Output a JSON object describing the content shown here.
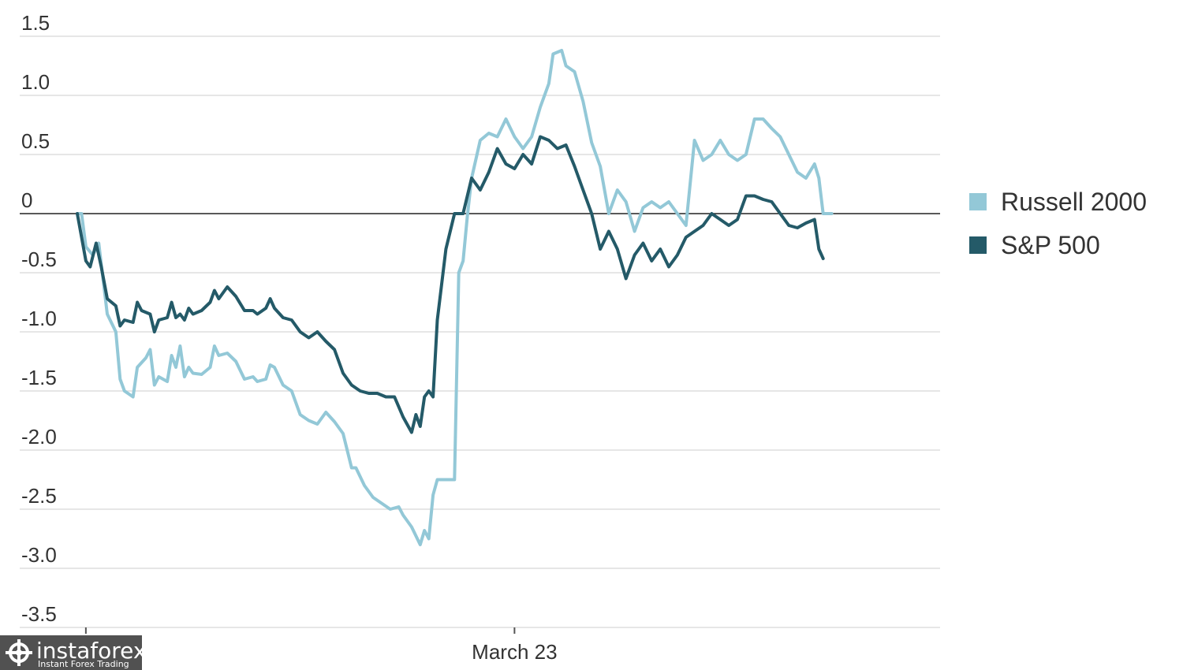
{
  "chart_data": {
    "type": "line",
    "yticks": [
      "1.5",
      "1.0",
      "0.5",
      "0",
      "-0.5",
      "-1.0",
      "-1.5",
      "-2.0",
      "-2.5",
      "-3.0",
      "-3.5"
    ],
    "ylim": [
      -3.5,
      1.5
    ],
    "xlim": [
      0,
      100
    ],
    "x_ticks": [
      {
        "label": "",
        "x": 1
      },
      {
        "label": "March 23",
        "x": 51
      }
    ],
    "grid": true,
    "legend_position": "right",
    "series": [
      {
        "name": "Russell 2000",
        "color": "#93c8d7",
        "points": [
          [
            0,
            0
          ],
          [
            0.5,
            0
          ],
          [
            1,
            -0.28
          ],
          [
            1.8,
            -0.35
          ],
          [
            2.5,
            -0.25
          ],
          [
            3.5,
            -0.85
          ],
          [
            4.5,
            -1.0
          ],
          [
            5,
            -1.4
          ],
          [
            5.5,
            -1.5
          ],
          [
            6.5,
            -1.55
          ],
          [
            7,
            -1.3
          ],
          [
            8,
            -1.22
          ],
          [
            8.5,
            -1.15
          ],
          [
            9,
            -1.45
          ],
          [
            9.5,
            -1.38
          ],
          [
            10.5,
            -1.42
          ],
          [
            11,
            -1.2
          ],
          [
            11.5,
            -1.3
          ],
          [
            12,
            -1.12
          ],
          [
            12.5,
            -1.38
          ],
          [
            13,
            -1.3
          ],
          [
            13.5,
            -1.35
          ],
          [
            14.5,
            -1.36
          ],
          [
            15.5,
            -1.3
          ],
          [
            16,
            -1.12
          ],
          [
            16.5,
            -1.2
          ],
          [
            17.5,
            -1.18
          ],
          [
            18.5,
            -1.25
          ],
          [
            19.5,
            -1.4
          ],
          [
            20.5,
            -1.38
          ],
          [
            21,
            -1.42
          ],
          [
            22,
            -1.4
          ],
          [
            22.5,
            -1.28
          ],
          [
            23,
            -1.3
          ],
          [
            24,
            -1.45
          ],
          [
            25,
            -1.5
          ],
          [
            26,
            -1.7
          ],
          [
            27,
            -1.75
          ],
          [
            28,
            -1.78
          ],
          [
            29,
            -1.68
          ],
          [
            30,
            -1.76
          ],
          [
            31,
            -1.86
          ],
          [
            32,
            -2.15
          ],
          [
            32.5,
            -2.15
          ],
          [
            33.5,
            -2.3
          ],
          [
            34.5,
            -2.4
          ],
          [
            35.5,
            -2.45
          ],
          [
            36.5,
            -2.5
          ],
          [
            37.5,
            -2.48
          ],
          [
            38,
            -2.55
          ],
          [
            39,
            -2.65
          ],
          [
            40,
            -2.8
          ],
          [
            40.5,
            -2.68
          ],
          [
            41,
            -2.75
          ],
          [
            41.5,
            -2.38
          ],
          [
            42,
            -2.25
          ],
          [
            43,
            -2.25
          ],
          [
            44,
            -2.25
          ],
          [
            44.5,
            -0.5
          ],
          [
            45,
            -0.4
          ],
          [
            45.5,
            -0.02
          ],
          [
            46,
            0.3
          ],
          [
            47,
            0.62
          ],
          [
            48,
            0.68
          ],
          [
            49,
            0.65
          ],
          [
            50,
            0.8
          ],
          [
            51,
            0.65
          ],
          [
            52,
            0.55
          ],
          [
            53,
            0.65
          ],
          [
            54,
            0.9
          ],
          [
            55,
            1.1
          ],
          [
            55.5,
            1.35
          ],
          [
            56.5,
            1.38
          ],
          [
            57,
            1.25
          ],
          [
            58,
            1.2
          ],
          [
            59,
            0.95
          ],
          [
            60,
            0.6
          ],
          [
            61,
            0.4
          ],
          [
            62,
            0.0
          ],
          [
            63,
            0.2
          ],
          [
            64,
            0.1
          ],
          [
            65,
            -0.15
          ],
          [
            66,
            0.05
          ],
          [
            67,
            0.1
          ],
          [
            68,
            0.05
          ],
          [
            69,
            0.1
          ],
          [
            70,
            0.0
          ],
          [
            71,
            -0.1
          ],
          [
            72,
            0.62
          ],
          [
            73,
            0.45
          ],
          [
            74,
            0.5
          ],
          [
            75,
            0.62
          ],
          [
            76,
            0.5
          ],
          [
            77,
            0.45
          ],
          [
            78,
            0.5
          ],
          [
            79,
            0.8
          ],
          [
            80,
            0.8
          ],
          [
            81,
            0.72
          ],
          [
            82,
            0.65
          ],
          [
            83,
            0.5
          ],
          [
            84,
            0.35
          ],
          [
            85,
            0.3
          ],
          [
            86,
            0.42
          ],
          [
            86.5,
            0.3
          ],
          [
            87,
            0.0
          ],
          [
            88,
            0.0
          ]
        ]
      },
      {
        "name": "S&P 500",
        "color": "#245a68",
        "points": [
          [
            0,
            0
          ],
          [
            1,
            -0.4
          ],
          [
            1.5,
            -0.45
          ],
          [
            2.2,
            -0.25
          ],
          [
            2.8,
            -0.45
          ],
          [
            3.5,
            -0.72
          ],
          [
            4.5,
            -0.78
          ],
          [
            5,
            -0.95
          ],
          [
            5.5,
            -0.9
          ],
          [
            6.5,
            -0.92
          ],
          [
            7,
            -0.75
          ],
          [
            7.5,
            -0.82
          ],
          [
            8.5,
            -0.85
          ],
          [
            9,
            -1.0
          ],
          [
            9.5,
            -0.9
          ],
          [
            10.5,
            -0.88
          ],
          [
            11,
            -0.75
          ],
          [
            11.5,
            -0.88
          ],
          [
            12,
            -0.85
          ],
          [
            12.5,
            -0.9
          ],
          [
            13,
            -0.8
          ],
          [
            13.5,
            -0.85
          ],
          [
            14.5,
            -0.82
          ],
          [
            15.5,
            -0.75
          ],
          [
            16,
            -0.65
          ],
          [
            16.5,
            -0.72
          ],
          [
            17.5,
            -0.62
          ],
          [
            18.5,
            -0.7
          ],
          [
            19.5,
            -0.82
          ],
          [
            20.5,
            -0.82
          ],
          [
            21,
            -0.85
          ],
          [
            22,
            -0.8
          ],
          [
            22.5,
            -0.72
          ],
          [
            23,
            -0.8
          ],
          [
            24,
            -0.88
          ],
          [
            25,
            -0.9
          ],
          [
            26,
            -1.0
          ],
          [
            27,
            -1.05
          ],
          [
            28,
            -1.0
          ],
          [
            29,
            -1.08
          ],
          [
            30,
            -1.15
          ],
          [
            31,
            -1.35
          ],
          [
            32,
            -1.45
          ],
          [
            33,
            -1.5
          ],
          [
            34,
            -1.52
          ],
          [
            35,
            -1.52
          ],
          [
            36,
            -1.55
          ],
          [
            37,
            -1.55
          ],
          [
            38,
            -1.72
          ],
          [
            39,
            -1.85
          ],
          [
            39.5,
            -1.7
          ],
          [
            40,
            -1.8
          ],
          [
            40.5,
            -1.55
          ],
          [
            41,
            -1.5
          ],
          [
            41.5,
            -1.55
          ],
          [
            42,
            -0.9
          ],
          [
            43,
            -0.3
          ],
          [
            44,
            0.0
          ],
          [
            45,
            0.0
          ],
          [
            46,
            0.3
          ],
          [
            47,
            0.2
          ],
          [
            48,
            0.35
          ],
          [
            49,
            0.55
          ],
          [
            50,
            0.42
          ],
          [
            51,
            0.38
          ],
          [
            52,
            0.5
          ],
          [
            53,
            0.42
          ],
          [
            54,
            0.65
          ],
          [
            55,
            0.62
          ],
          [
            56,
            0.55
          ],
          [
            57,
            0.58
          ],
          [
            58,
            0.4
          ],
          [
            59,
            0.2
          ],
          [
            60,
            0.0
          ],
          [
            61,
            -0.3
          ],
          [
            62,
            -0.15
          ],
          [
            63,
            -0.3
          ],
          [
            64,
            -0.55
          ],
          [
            65,
            -0.35
          ],
          [
            66,
            -0.25
          ],
          [
            67,
            -0.4
          ],
          [
            68,
            -0.3
          ],
          [
            69,
            -0.45
          ],
          [
            70,
            -0.35
          ],
          [
            71,
            -0.2
          ],
          [
            72,
            -0.15
          ],
          [
            73,
            -0.1
          ],
          [
            74,
            0.0
          ],
          [
            75,
            -0.05
          ],
          [
            76,
            -0.1
          ],
          [
            77,
            -0.05
          ],
          [
            78,
            0.15
          ],
          [
            79,
            0.15
          ],
          [
            80,
            0.12
          ],
          [
            81,
            0.1
          ],
          [
            82,
            0.0
          ],
          [
            83,
            -0.1
          ],
          [
            84,
            -0.12
          ],
          [
            85,
            -0.08
          ],
          [
            86,
            -0.05
          ],
          [
            86.5,
            -0.3
          ],
          [
            87,
            -0.38
          ]
        ]
      }
    ]
  },
  "watermark": {
    "brand": "instaforex",
    "tagline": "Instant Forex Trading"
  }
}
